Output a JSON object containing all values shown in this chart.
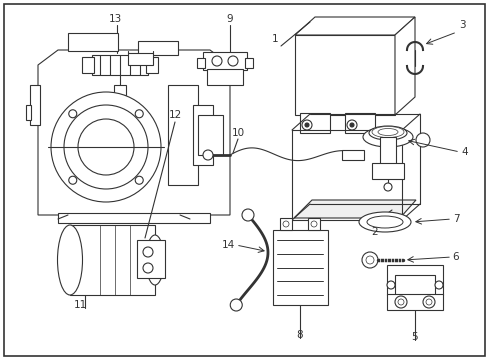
{
  "background_color": "#ffffff",
  "fig_width": 4.89,
  "fig_height": 3.6,
  "dpi": 100,
  "line_color": "#333333",
  "lw": 0.8
}
